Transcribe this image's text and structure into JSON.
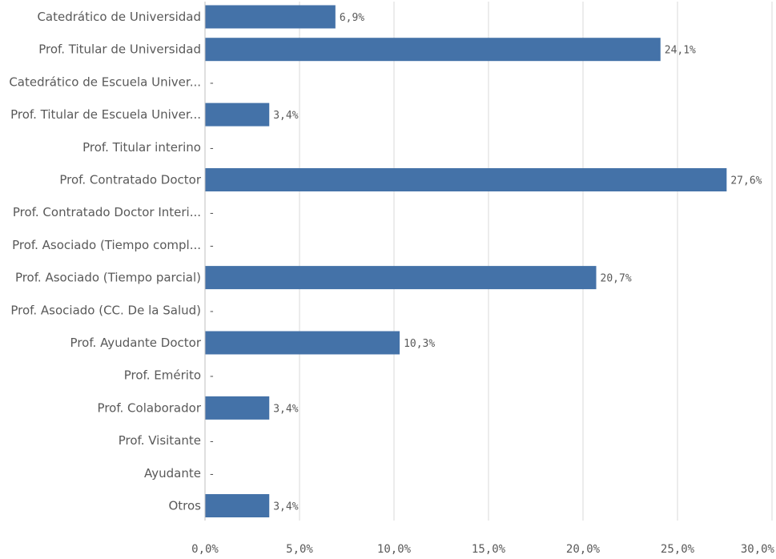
{
  "chart_data": {
    "type": "bar",
    "orientation": "horizontal",
    "categories": [
      "Catedrático de Universidad",
      "Prof. Titular de Universidad",
      "Catedrático de Escuela Univer...",
      "Prof. Titular de Escuela Univer...",
      "Prof. Titular interino",
      "Prof. Contratado Doctor",
      "Prof. Contratado Doctor Interi...",
      "Prof. Asociado (Tiempo compl...",
      "Prof. Asociado (Tiempo parcial)",
      "Prof. Asociado (CC. De la Salud)",
      "Prof. Ayudante Doctor",
      "Prof. Emérito",
      "Prof. Colaborador",
      "Prof. Visitante",
      "Ayudante",
      "Otros"
    ],
    "values": [
      6.9,
      24.1,
      null,
      3.4,
      null,
      27.6,
      null,
      null,
      20.7,
      null,
      10.3,
      null,
      3.4,
      null,
      null,
      3.4
    ],
    "value_labels": [
      "6,9%",
      "24,1%",
      "-",
      "3,4%",
      "-",
      "27,6%",
      "-",
      "-",
      "20,7%",
      "-",
      "10,3%",
      "-",
      "3,4%",
      "-",
      "-",
      "3,4%"
    ],
    "xlim": [
      0,
      30
    ],
    "x_ticks": [
      0,
      5,
      10,
      15,
      20,
      25,
      30
    ],
    "x_tick_labels": [
      "0,0%",
      "5,0%",
      "10,0%",
      "15,0%",
      "20,0%",
      "25,0%",
      "30,0%"
    ],
    "grid": true,
    "bar_color": "#4472a8",
    "grid_color": "#d9d9d9"
  }
}
